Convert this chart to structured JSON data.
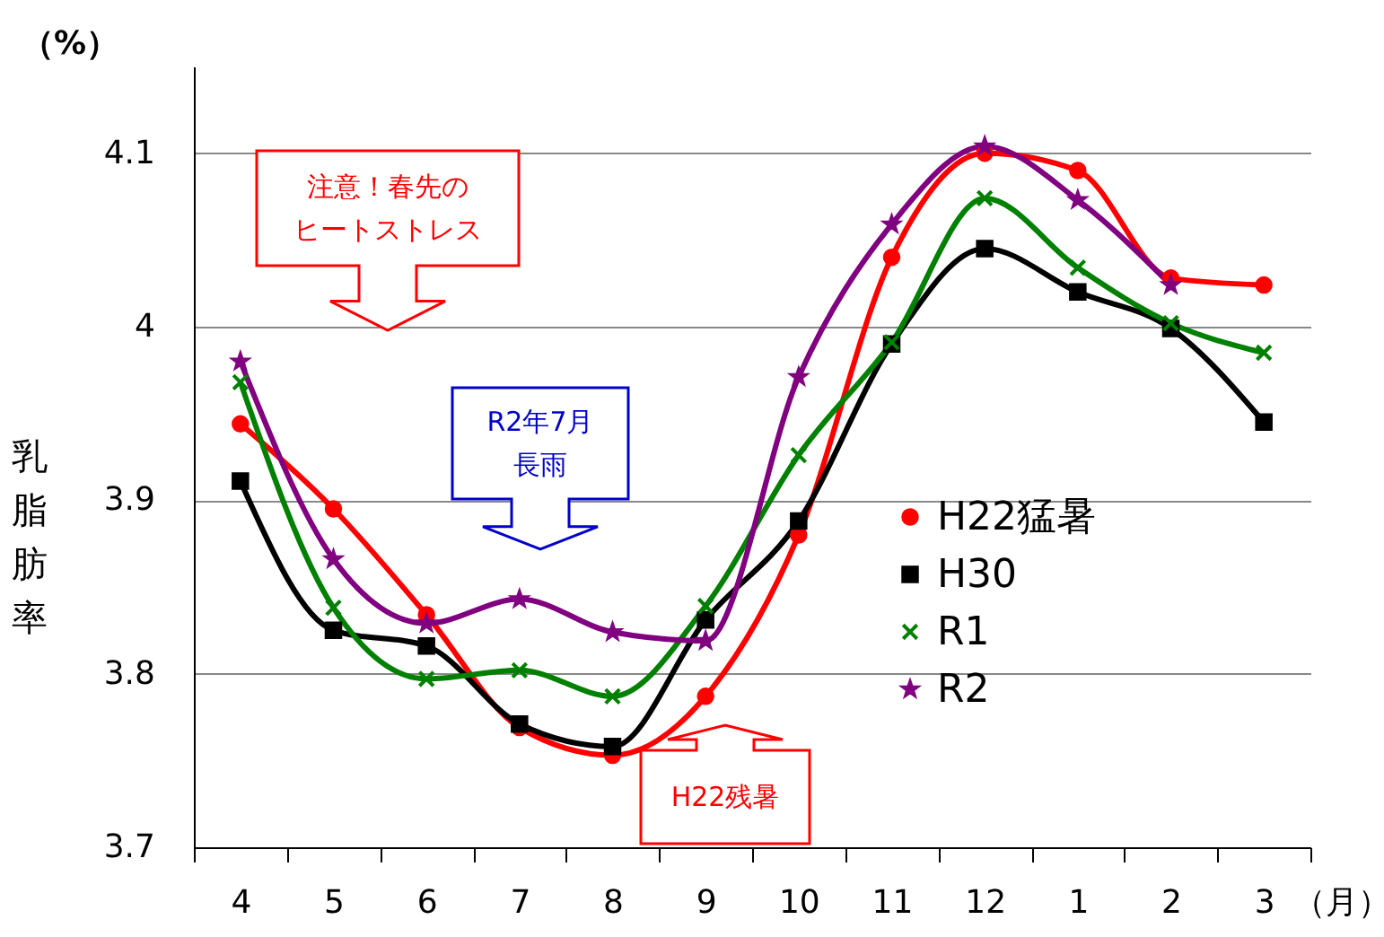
{
  "chart_data": {
    "type": "line",
    "ylabel": "乳脂肪率",
    "xlabel": "（月）",
    "categories": [
      "4",
      "5",
      "6",
      "7",
      "8",
      "9",
      "10",
      "11",
      "12",
      "1",
      "2",
      "3"
    ],
    "series": [
      {
        "name": "H22猛暑",
        "color": "#ff0000",
        "marker": "circle",
        "values": [
          3.944,
          3.895,
          3.834,
          3.769,
          3.753,
          3.787,
          3.88,
          4.04,
          4.1,
          4.09,
          4.028,
          4.024
        ]
      },
      {
        "name": "H30",
        "color": "#000000",
        "marker": "square",
        "values": [
          3.911,
          3.825,
          3.816,
          3.771,
          3.758,
          3.831,
          3.888,
          3.99,
          4.045,
          4.02,
          3.999,
          3.945
        ]
      },
      {
        "name": "R1",
        "color": "#008000",
        "marker": "cross",
        "values": [
          3.968,
          3.838,
          3.797,
          3.802,
          3.787,
          3.839,
          3.926,
          3.991,
          4.074,
          4.034,
          4.002,
          3.985
        ]
      },
      {
        "name": "R2",
        "color": "#800080",
        "marker": "star",
        "values": [
          3.98,
          3.866,
          3.829,
          3.843,
          3.824,
          3.819,
          3.971,
          4.059,
          4.104,
          4.073,
          4.024,
          null
        ]
      }
    ],
    "ylim": [
      3.7,
      4.15
    ],
    "yticks": [
      3.7,
      3.8,
      3.9,
      4,
      4.1
    ],
    "grid": "y",
    "legend": "bottom right",
    "annotations": [
      "（%）",
      "注意！春先のヒートストレス",
      "R2年7月長雨",
      "H22残暑"
    ]
  }
}
